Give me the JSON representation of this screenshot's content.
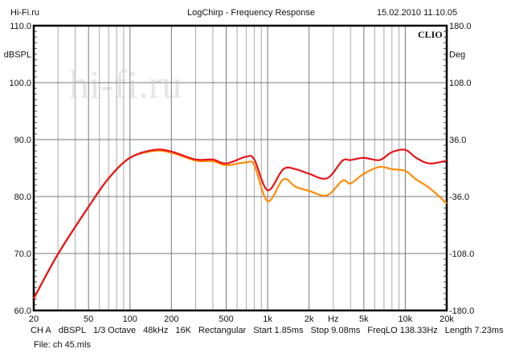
{
  "header": {
    "left": "Hi-Fi.ru",
    "center": "LogChirp - Frequency Response",
    "right": "15.02.2010 11.10.05"
  },
  "watermark": "hi-fi.ru",
  "brand": "CLIO",
  "footer": {
    "settings": [
      "CH A",
      "dBSPL",
      "1/3 Octave",
      "48kHz",
      "16K",
      "Rectangular",
      "Start 1.85ms",
      "Stop 9.08ms",
      "FreqLO 138.33Hz",
      "Length 7.23ms"
    ],
    "file": "File: ch 45.mls"
  },
  "chart_data": {
    "type": "line",
    "title": "LogChirp - Frequency Response",
    "xlabel": "Hz",
    "ylabel": "dBSPL",
    "y2label": "Deg",
    "xscale": "log",
    "xlim": [
      20,
      20000
    ],
    "ylim": [
      60,
      110
    ],
    "y2lim": [
      -180,
      180
    ],
    "xticks": [
      {
        "v": 20,
        "l": "20"
      },
      {
        "v": 50,
        "l": "50"
      },
      {
        "v": 100,
        "l": "100"
      },
      {
        "v": 200,
        "l": "200"
      },
      {
        "v": 500,
        "l": "500"
      },
      {
        "v": 1000,
        "l": "1k"
      },
      {
        "v": 2000,
        "l": "2k"
      },
      {
        "v": 3000,
        "l": "Hz"
      },
      {
        "v": 5000,
        "l": "5k"
      },
      {
        "v": 10000,
        "l": "10k"
      },
      {
        "v": 20000,
        "l": "20k"
      }
    ],
    "yticks": [
      "60.0",
      "70.0",
      "80.0",
      "90.0",
      "100.0",
      "110.0"
    ],
    "y2ticks": [
      "-180.0",
      "-108.0",
      "-36.0",
      "36.0",
      "108.0",
      "180.0"
    ],
    "grid": true,
    "x": [
      20,
      30,
      50,
      70,
      100,
      150,
      200,
      300,
      400,
      500,
      700,
      800,
      1000,
      1300,
      1600,
      2000,
      2700,
      3500,
      4000,
      5000,
      6500,
      8000,
      10000,
      12000,
      15000,
      20000
    ],
    "series": [
      {
        "name": "red",
        "color": "#e8141a",
        "values": [
          62.1,
          69.9,
          78.2,
          83.2,
          86.8,
          88.2,
          87.9,
          86.5,
          86.5,
          85.8,
          87.0,
          86.5,
          81.1,
          84.8,
          84.8,
          84.0,
          83.2,
          86.3,
          86.4,
          86.8,
          86.4,
          87.8,
          88.2,
          86.8,
          85.8,
          86.3
        ]
      },
      {
        "name": "orange",
        "color": "#ff8c0a",
        "values": [
          62.1,
          69.9,
          78.2,
          83.2,
          86.8,
          88.0,
          87.7,
          86.3,
          86.2,
          85.5,
          86.0,
          85.5,
          79.2,
          83.0,
          81.7,
          81.0,
          80.2,
          82.8,
          82.3,
          84.0,
          85.2,
          84.8,
          84.5,
          83.0,
          81.5,
          78.8
        ]
      }
    ]
  }
}
